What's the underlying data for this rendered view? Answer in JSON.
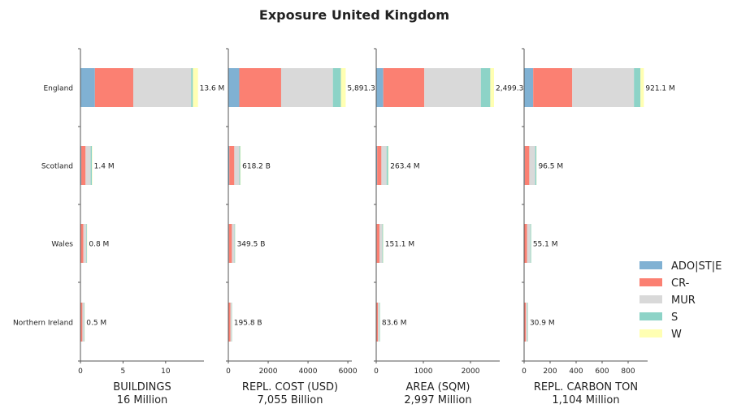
{
  "title": "Exposure United Kingdom",
  "legend": {
    "placement": "right",
    "items": [
      {
        "label": "ADO|ST|E",
        "color": "#80b1d3"
      },
      {
        "label": "CR-",
        "color": "#fb8072"
      },
      {
        "label": "MUR",
        "color": "#d9d9d9"
      },
      {
        "label": "S",
        "color": "#8dd3c7"
      },
      {
        "label": "W",
        "color": "#ffffb3"
      }
    ]
  },
  "chart_data": {
    "type": "bar",
    "orientation": "horizontal",
    "stacked": true,
    "categories": [
      "England",
      "Scotland",
      "Wales",
      "Northern Ireland"
    ],
    "series_names": [
      "ADO|ST|E",
      "CR-",
      "MUR",
      "S",
      "W"
    ],
    "panels": [
      {
        "xlabel": "BUILDINGS",
        "subtitle": "16 Million",
        "xlim": [
          0,
          14.5
        ],
        "xticks": [
          0,
          5,
          10
        ],
        "tick_labels": [
          "0",
          "5",
          "10"
        ],
        "values": [
          [
            1.7,
            4.5,
            6.8,
            0.2,
            0.6
          ],
          [
            0.1,
            0.5,
            0.6,
            0.15,
            0.05
          ],
          [
            0.05,
            0.3,
            0.35,
            0.07,
            0.03
          ],
          [
            0.03,
            0.2,
            0.2,
            0.05,
            0.02
          ]
        ],
        "totals": [
          "13.6 M",
          "1.4 M",
          "0.8 M",
          "0.5 M"
        ]
      },
      {
        "xlabel": "REPL. COST (USD)",
        "subtitle": "7,055 Billion",
        "xlim": [
          0,
          6200
        ],
        "xticks": [
          0,
          2000,
          4000,
          6000
        ],
        "tick_labels": [
          "0",
          "2000",
          "4000",
          "6000"
        ],
        "values": [
          [
            550,
            2100,
            2600,
            400,
            241.3
          ],
          [
            50,
            250,
            250,
            50,
            18.2
          ],
          [
            30,
            150,
            130,
            30,
            9.5
          ],
          [
            15,
            90,
            70,
            15,
            5.8
          ]
        ],
        "totals": [
          "5,891.3",
          "618.2 B",
          "349.5 B",
          "195.8 B"
        ]
      },
      {
        "xlabel": "AREA (SQM)",
        "subtitle": "2,997 Million",
        "xlim": [
          0,
          2620
        ],
        "xticks": [
          0,
          1000,
          2000
        ],
        "tick_labels": [
          "0",
          "1000",
          "2000"
        ],
        "values": [
          [
            150,
            870,
            1200,
            200,
            79.3
          ],
          [
            20,
            90,
            110,
            35,
            8.4
          ],
          [
            10,
            60,
            60,
            15,
            6.1
          ],
          [
            5,
            30,
            35,
            10,
            3.6
          ]
        ],
        "totals": [
          "2,499.3",
          "263.4 M",
          "151.1 M",
          "83.6 M"
        ]
      },
      {
        "xlabel": "REPL. CARBON TON",
        "subtitle": "1,104 Million",
        "xlim": [
          0,
          950
        ],
        "xticks": [
          0,
          200,
          400,
          600,
          800
        ],
        "tick_labels": [
          "0",
          "200",
          "400",
          "600",
          "800"
        ],
        "values": [
          [
            70,
            300,
            475,
            50,
            26.1
          ],
          [
            5,
            35,
            45,
            10,
            1.5
          ],
          [
            3,
            20,
            25,
            6,
            1.1
          ],
          [
            2,
            12,
            12,
            4,
            0.9
          ]
        ],
        "totals": [
          "921.1 M",
          "96.5 M",
          "55.1 M",
          "30.9 M"
        ]
      }
    ]
  }
}
